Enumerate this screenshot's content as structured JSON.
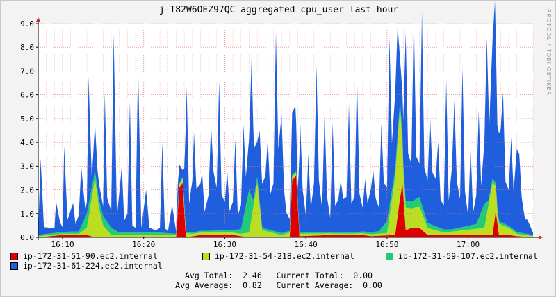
{
  "title": "j-T82W6OEZ97QC aggregated cpu_user last hour",
  "watermark": "RRDTOOL / TOBI OETIKER",
  "colors": {
    "background": "#f3f3f3",
    "canvas": "#ffffff",
    "grid_minor": "#f0b0b0",
    "grid_major": "#e07070",
    "axis": "#000000",
    "arrow": "#c03030"
  },
  "chart_data": {
    "type": "area",
    "stacked": true,
    "title": "j-T82W6OEZ97QC aggregated cpu_user last hour",
    "xlabel": "",
    "ylabel": "",
    "x_start": "16:07",
    "x_end": "17:08",
    "x_ticks": [
      {
        "time": "16:10",
        "label": "16:10"
      },
      {
        "time": "16:20",
        "label": "16:20"
      },
      {
        "time": "16:30",
        "label": "16:30"
      },
      {
        "time": "16:40",
        "label": "16:40"
      },
      {
        "time": "16:50",
        "label": "16:50"
      },
      {
        "time": "17:00",
        "label": "17:00"
      }
    ],
    "ylim": [
      0,
      9
    ],
    "y_ticks": [
      "0.0",
      "1.0",
      "2.0",
      "3.0",
      "4.0",
      "5.0",
      "6.0",
      "7.0",
      "8.0",
      "9.0"
    ],
    "grid": true,
    "legend_placement": "bottom",
    "series_order": [
      "ip-172-31-51-90.ec2.internal",
      "ip-172-31-54-218.ec2.internal",
      "ip-172-31-59-107.ec2.internal",
      "ip-172-31-61-224.ec2.internal"
    ],
    "series": [
      {
        "name": "ip-172-31-51-90.ec2.internal",
        "color": "#dd0000",
        "points": [
          [
            "16:07",
            0
          ],
          [
            "16:10",
            0.1
          ],
          [
            "16:13",
            0.1
          ],
          [
            "16:14",
            0
          ],
          [
            "16:24",
            0
          ],
          [
            "16:24.4",
            2.1
          ],
          [
            "16:24.8",
            2.3
          ],
          [
            "16:25.2",
            0
          ],
          [
            "16:27",
            0.1
          ],
          [
            "16:31",
            0.1
          ],
          [
            "16:33",
            0
          ],
          [
            "16:38",
            0
          ],
          [
            "16:38.3",
            2.4
          ],
          [
            "16:38.8",
            2.6
          ],
          [
            "16:39.2",
            0.05
          ],
          [
            "16:43",
            0.1
          ],
          [
            "16:47",
            0.1
          ],
          [
            "16:48",
            0.05
          ],
          [
            "16:51",
            0.1
          ],
          [
            "16:51.5",
            1.4
          ],
          [
            "16:51.9",
            2.3
          ],
          [
            "16:52.3",
            0.3
          ],
          [
            "16:53",
            0.4
          ],
          [
            "16:54",
            0.4
          ],
          [
            "16:55",
            0.1
          ],
          [
            "16:58",
            0.1
          ],
          [
            "17:01",
            0.1
          ],
          [
            "17:03",
            0.1
          ],
          [
            "17:03.4",
            1.1
          ],
          [
            "17:03.8",
            0.1
          ],
          [
            "17:05",
            0.1
          ],
          [
            "17:06",
            0.05
          ],
          [
            "17:08",
            0
          ]
        ]
      },
      {
        "name": "ip-172-31-54-218.ec2.internal",
        "color": "#bbdd22",
        "points": [
          [
            "16:07",
            0.05
          ],
          [
            "16:12",
            0.05
          ],
          [
            "16:13",
            0.3
          ],
          [
            "16:14",
            2.5
          ],
          [
            "16:14.5",
            1.2
          ],
          [
            "16:15",
            0.5
          ],
          [
            "16:16",
            0.1
          ],
          [
            "16:24",
            0.1
          ],
          [
            "16:25",
            0.2
          ],
          [
            "16:26",
            0.1
          ],
          [
            "16:32",
            0.1
          ],
          [
            "16:33",
            0.2
          ],
          [
            "16:34",
            2.3
          ],
          [
            "16:34.6",
            0.3
          ],
          [
            "16:37",
            0.1
          ],
          [
            "16:38",
            0.2
          ],
          [
            "16:39",
            0.1
          ],
          [
            "16:45",
            0.05
          ],
          [
            "16:50",
            0.1
          ],
          [
            "16:51.6",
            3.8
          ],
          [
            "16:52",
            1.0
          ],
          [
            "16:53",
            0.8
          ],
          [
            "16:54",
            0.9
          ],
          [
            "16:55",
            0.3
          ],
          [
            "16:57",
            0.1
          ],
          [
            "17:02",
            0.3
          ],
          [
            "17:03",
            2.2
          ],
          [
            "17:03.6",
            0.5
          ],
          [
            "17:05",
            0.3
          ],
          [
            "17:06",
            0.1
          ],
          [
            "17:08",
            0.05
          ]
        ]
      },
      {
        "name": "ip-172-31-59-107.ec2.internal",
        "color": "#22cc77",
        "points": [
          [
            "16:07",
            0.05
          ],
          [
            "16:12",
            0.1
          ],
          [
            "16:13",
            0.6
          ],
          [
            "16:14",
            0.3
          ],
          [
            "16:15",
            0.4
          ],
          [
            "16:16",
            0.3
          ],
          [
            "16:17",
            0.1
          ],
          [
            "16:22",
            0.1
          ],
          [
            "16:24",
            0.05
          ],
          [
            "16:31",
            0.1
          ],
          [
            "16:32",
            0.2
          ],
          [
            "16:33",
            1.8
          ],
          [
            "16:33.5",
            0.3
          ],
          [
            "16:35",
            0.1
          ],
          [
            "16:40",
            0.05
          ],
          [
            "16:45",
            0.05
          ],
          [
            "16:49",
            0.1
          ],
          [
            "16:50",
            0.5
          ],
          [
            "16:51",
            0.3
          ],
          [
            "16:53",
            0.3
          ],
          [
            "16:54",
            0.4
          ],
          [
            "16:55",
            0.2
          ],
          [
            "16:58",
            0.1
          ],
          [
            "17:01",
            0.2
          ],
          [
            "17:02",
            1.0
          ],
          [
            "17:02.5",
            0.2
          ],
          [
            "17:04",
            0.1
          ],
          [
            "17:08",
            0.05
          ]
        ]
      },
      {
        "name": "ip-172-31-61-224.ec2.internal",
        "color": "#1f5fdd",
        "points": [
          [
            "16:07",
            0.2
          ],
          [
            "16:07.3",
            3.2
          ],
          [
            "16:07.7",
            0.3
          ],
          [
            "16:09",
            0.2
          ],
          [
            "16:09.2",
            1.3
          ],
          [
            "16:09.7",
            0.4
          ],
          [
            "16:10",
            0.2
          ],
          [
            "16:10.2",
            3.6
          ],
          [
            "16:10.6",
            0.5
          ],
          [
            "16:11.3",
            1.2
          ],
          [
            "16:11.6",
            0.3
          ],
          [
            "16:12",
            0.7
          ],
          [
            "16:12.3",
            2.5
          ],
          [
            "16:12.8",
            0.3
          ],
          [
            "16:13",
            0.5
          ],
          [
            "16:13.2",
            5.4
          ],
          [
            "16:13.6",
            0.4
          ],
          [
            "16:14",
            2.0
          ],
          [
            "16:14.3",
            0.8
          ],
          [
            "16:15",
            0.4
          ],
          [
            "16:15.2",
            5.3
          ],
          [
            "16:15.5",
            1.0
          ],
          [
            "16:16",
            0.7
          ],
          [
            "16:16.3",
            8.2
          ],
          [
            "16:16.7",
            0.6
          ],
          [
            "16:17.3",
            2.8
          ],
          [
            "16:17.6",
            0.5
          ],
          [
            "16:18",
            0.8
          ],
          [
            "16:18.3",
            5.5
          ],
          [
            "16:18.6",
            0.3
          ],
          [
            "16:19",
            0.2
          ],
          [
            "16:19.3",
            7.2
          ],
          [
            "16:19.7",
            0.2
          ],
          [
            "16:20.3",
            1.8
          ],
          [
            "16:20.7",
            0.2
          ],
          [
            "16:21.5",
            0.1
          ],
          [
            "16:22",
            0.2
          ],
          [
            "16:22.3",
            3.8
          ],
          [
            "16:22.6",
            0.2
          ],
          [
            "16:23",
            0.1
          ],
          [
            "16:23.5",
            1.2
          ],
          [
            "16:24",
            0.1
          ],
          [
            "16:24.2",
            1.0
          ],
          [
            "16:24.8",
            0.3
          ],
          [
            "16:25",
            1.5
          ],
          [
            "16:25.3",
            6.1
          ],
          [
            "16:25.6",
            1.2
          ],
          [
            "16:26",
            2.2
          ],
          [
            "16:26.2",
            4.2
          ],
          [
            "16:26.5",
            1.8
          ],
          [
            "16:27",
            2.0
          ],
          [
            "16:27.2",
            2.5
          ],
          [
            "16:27.5",
            0.8
          ],
          [
            "16:28",
            1.5
          ],
          [
            "16:28.3",
            4.5
          ],
          [
            "16:28.6",
            2.5
          ],
          [
            "16:29",
            1.8
          ],
          [
            "16:29.3",
            6.3
          ],
          [
            "16:29.6",
            1.5
          ],
          [
            "16:30",
            1.2
          ],
          [
            "16:30.3",
            2.5
          ],
          [
            "16:30.6",
            0.8
          ],
          [
            "16:31",
            1.2
          ],
          [
            "16:31.3",
            3.8
          ],
          [
            "16:31.6",
            0.6
          ],
          [
            "16:32",
            1.0
          ],
          [
            "16:32.3",
            3.9
          ],
          [
            "16:32.6",
            1.2
          ],
          [
            "16:33",
            2.2
          ],
          [
            "16:33.3",
            5.8
          ],
          [
            "16:33.6",
            2.0
          ],
          [
            "16:34",
            1.5
          ],
          [
            "16:34.3",
            3.0
          ],
          [
            "16:34.6",
            1.8
          ],
          [
            "16:35",
            2.2
          ],
          [
            "16:35.3",
            3.8
          ],
          [
            "16:35.6",
            1.5
          ],
          [
            "16:36",
            2.0
          ],
          [
            "16:36.3",
            8.4
          ],
          [
            "16:36.6",
            3.5
          ],
          [
            "16:37",
            5.0
          ],
          [
            "16:37.3",
            1.8
          ],
          [
            "16:37.6",
            0.8
          ],
          [
            "16:38",
            0.5
          ],
          [
            "16:38.3",
            2.6
          ],
          [
            "16:38.7",
            2.8
          ],
          [
            "16:39",
            0.5
          ],
          [
            "16:39.3",
            4.6
          ],
          [
            "16:39.6",
            1.8
          ],
          [
            "16:40",
            0.7
          ],
          [
            "16:40.3",
            3.3
          ],
          [
            "16:40.6",
            1.0
          ],
          [
            "16:41",
            2.1
          ],
          [
            "16:41.3",
            7.0
          ],
          [
            "16:41.6",
            2.2
          ],
          [
            "16:42",
            1.0
          ],
          [
            "16:42.3",
            5.0
          ],
          [
            "16:42.6",
            1.5
          ],
          [
            "16:43",
            0.6
          ],
          [
            "16:43.3",
            4.6
          ],
          [
            "16:43.6",
            1.1
          ],
          [
            "16:44",
            1.4
          ],
          [
            "16:44.3",
            2.2
          ],
          [
            "16:44.6",
            1.4
          ],
          [
            "16:45",
            1.5
          ],
          [
            "16:45.3",
            5.4
          ],
          [
            "16:45.6",
            1.2
          ],
          [
            "16:46",
            1.5
          ],
          [
            "16:46.3",
            6.6
          ],
          [
            "16:46.6",
            1.6
          ],
          [
            "16:47",
            1.0
          ],
          [
            "16:47.3",
            2.2
          ],
          [
            "16:47.6",
            1.2
          ],
          [
            "16:48",
            1.8
          ],
          [
            "16:48.3",
            2.6
          ],
          [
            "16:48.6",
            1.4
          ],
          [
            "16:49",
            1.0
          ],
          [
            "16:49.3",
            4.4
          ],
          [
            "16:49.6",
            1.8
          ],
          [
            "16:50",
            1.4
          ],
          [
            "16:50.3",
            7.1
          ],
          [
            "16:50.6",
            2.0
          ],
          [
            "16:51",
            3.2
          ],
          [
            "16:51.3",
            4.6
          ],
          [
            "16:51.6",
            1.8
          ],
          [
            "16:52",
            1.8
          ],
          [
            "16:52.3",
            7.1
          ],
          [
            "16:52.6",
            2.0
          ],
          [
            "16:53",
            1.6
          ],
          [
            "16:53.3",
            7.8
          ],
          [
            "16:53.6",
            1.8
          ],
          [
            "16:54",
            1.4
          ],
          [
            "16:54.3",
            8.1
          ],
          [
            "16:54.6",
            1.9
          ],
          [
            "16:55",
            1.8
          ],
          [
            "16:55.3",
            4.6
          ],
          [
            "16:55.6",
            2.2
          ],
          [
            "16:56",
            2.0
          ],
          [
            "16:56.3",
            3.6
          ],
          [
            "16:56.6",
            1.2
          ],
          [
            "16:57",
            1.0
          ],
          [
            "16:57.3",
            6.3
          ],
          [
            "16:57.6",
            1.2
          ],
          [
            "16:58",
            2.6
          ],
          [
            "16:58.3",
            5.4
          ],
          [
            "16:58.6",
            2.0
          ],
          [
            "16:59",
            1.2
          ],
          [
            "16:59.3",
            6.7
          ],
          [
            "16:59.6",
            1.5
          ],
          [
            "17:00",
            0.4
          ],
          [
            "17:00.3",
            3.3
          ],
          [
            "17:00.6",
            0.5
          ],
          [
            "17:01",
            1.2
          ],
          [
            "17:01.3",
            4.5
          ],
          [
            "17:01.6",
            1.1
          ],
          [
            "17:02",
            2.6
          ],
          [
            "17:02.3",
            6.9
          ],
          [
            "17:02.6",
            3.0
          ],
          [
            "17:03",
            5.8
          ],
          [
            "17:03.3",
            7.6
          ],
          [
            "17:03.6",
            3.5
          ],
          [
            "17:04",
            3.9
          ],
          [
            "17:04.3",
            5.5
          ],
          [
            "17:04.6",
            1.8
          ],
          [
            "17:05",
            1.5
          ],
          [
            "17:05.3",
            3.8
          ],
          [
            "17:05.6",
            1.6
          ],
          [
            "17:06",
            3.5
          ],
          [
            "17:06.3",
            3.3
          ],
          [
            "17:06.6",
            1.5
          ],
          [
            "17:07",
            0.6
          ],
          [
            "17:07.3",
            0.6
          ],
          [
            "17:08",
            0.1
          ]
        ]
      }
    ]
  },
  "legend": {
    "items": [
      {
        "label": "ip-172-31-51-90.ec2.internal",
        "color": "#dd0000"
      },
      {
        "label": "ip-172-31-54-218.ec2.internal",
        "color": "#bbdd22"
      },
      {
        "label": "ip-172-31-59-107.ec2.internal",
        "color": "#22cc77"
      },
      {
        "label": "ip-172-31-61-224.ec2.internal",
        "color": "#1f5fdd"
      }
    ]
  },
  "stats": {
    "line1": "Avg Total:  2.46   Current Total:  0.00",
    "line2": "Avg Average:  0.82   Current Average:  0.00"
  }
}
